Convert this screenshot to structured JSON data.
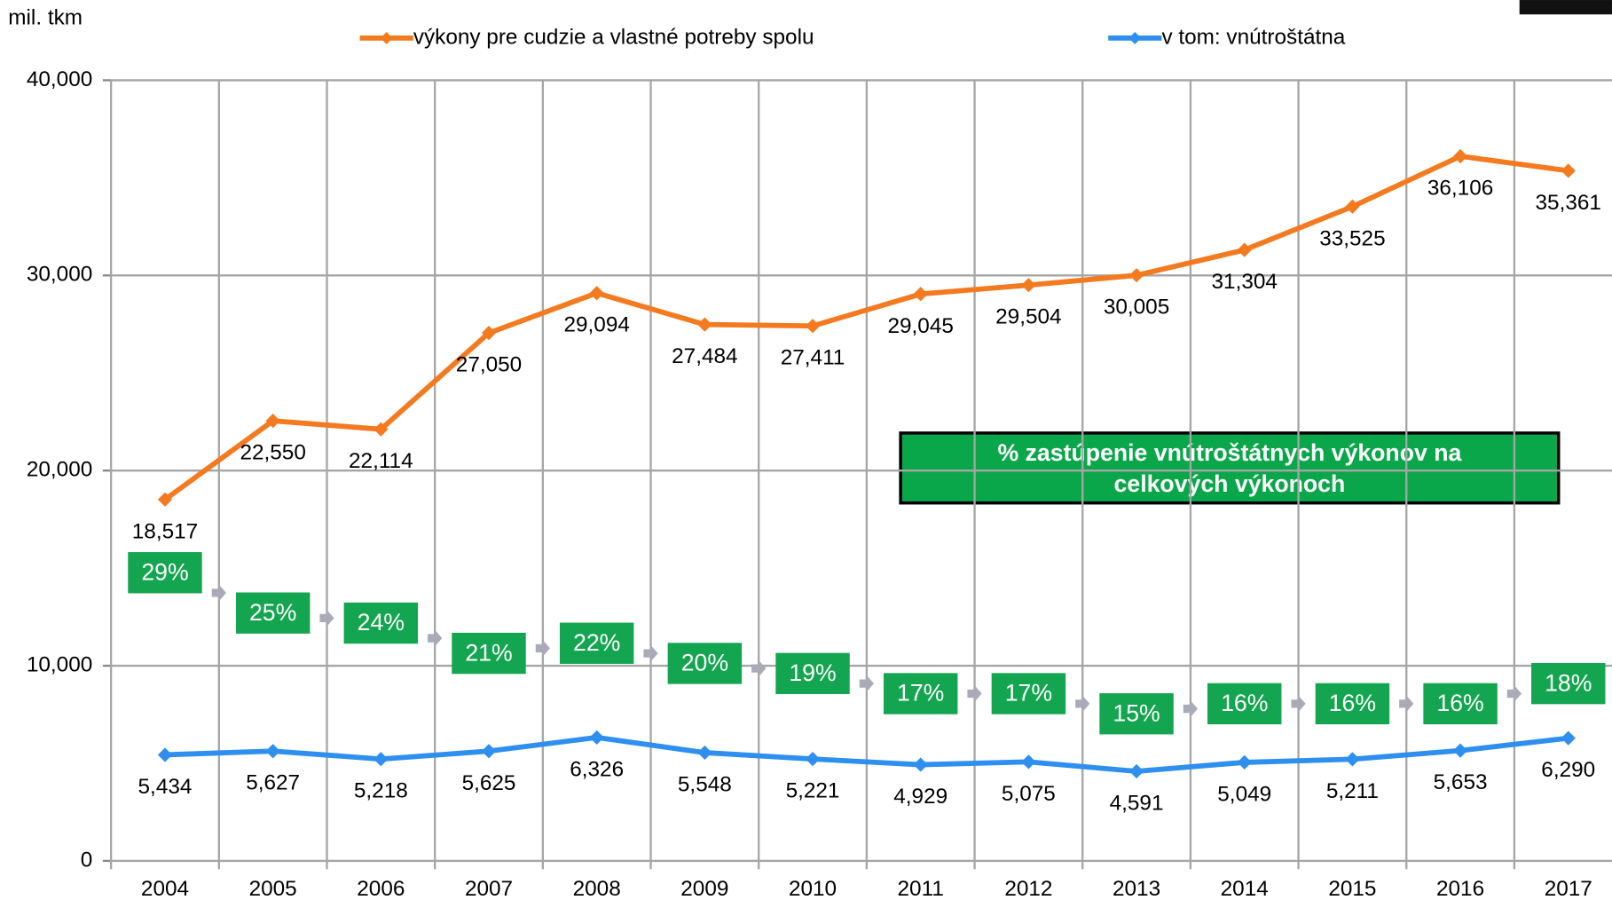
{
  "chart_data": {
    "type": "line",
    "y_label": "mil. tkm",
    "categories": [
      "2004",
      "2005",
      "2006",
      "2007",
      "2008",
      "2009",
      "2010",
      "2011",
      "2012",
      "2013",
      "2014",
      "2015",
      "2016",
      "2017"
    ],
    "series": [
      {
        "name": "výkony pre cudzie a vlastné potreby spolu",
        "color": "#f47a20",
        "values": [
          18517,
          22550,
          22114,
          27050,
          29094,
          27484,
          27411,
          29045,
          29504,
          30005,
          31304,
          33525,
          36106,
          35361
        ],
        "value_labels": [
          "18,517",
          "22,550",
          "22,114",
          "27,050",
          "29,094",
          "27,484",
          "27,411",
          "29,045",
          "29,504",
          "30,005",
          "31,304",
          "33,525",
          "36,106",
          "35,361"
        ]
      },
      {
        "name": "v tom: vnútroštátna",
        "color": "#2e8fef",
        "values": [
          5434,
          5627,
          5218,
          5625,
          6326,
          5548,
          5221,
          4929,
          5075,
          4591,
          5049,
          5211,
          5653,
          6290
        ],
        "value_labels": [
          "5,434",
          "5,627",
          "5,218",
          "5,625",
          "6,326",
          "5,548",
          "5,221",
          "4,929",
          "5,075",
          "4,591",
          "5,049",
          "5,211",
          "5,653",
          "6,290"
        ]
      }
    ],
    "shares": {
      "color": "#13a54f",
      "values": [
        29,
        25,
        24,
        21,
        22,
        20,
        19,
        17,
        17,
        15,
        16,
        16,
        16,
        18
      ],
      "value_labels": [
        "29%",
        "25%",
        "24%",
        "21%",
        "22%",
        "20%",
        "19%",
        "17%",
        "17%",
        "15%",
        "16%",
        "16%",
        "16%",
        "18%"
      ]
    },
    "annotation": "% zastúpenie vnútroštátnych výkonov na celkových výkonoch",
    "ylim": [
      0,
      40000
    ],
    "yticks": [
      0,
      {
        "value": 10000,
        "label": "10,000"
      },
      {
        "value": 20000,
        "label": "20,000"
      },
      {
        "value": 30000,
        "label": "30,000"
      },
      {
        "value": 40000,
        "label": "40,000"
      }
    ],
    "grid": true
  }
}
